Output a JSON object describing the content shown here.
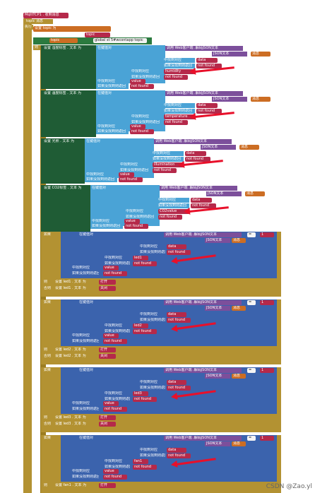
{
  "header": {
    "event_label": "MqttTCP1 . 收到消息",
    "topic_param": "topic",
    "message_param": "消息",
    "do_label": "执行",
    "set_label": "设置",
    "to_label": "为",
    "topic_var": "topic",
    "topic_block": "topic",
    "global_topic": "global st 5#wcontapp topic"
  },
  "common": {
    "if_label": "如果",
    "then_label": "则",
    "else_label": "否则",
    "get_label": "取",
    "parse_json": "调用 Web客户端 .解码JSON文本",
    "json_text": "JSON文本",
    "message_var": "消息",
    "key_label": "键",
    "tag_label": "中找到对应",
    "notfound_label": "如果没找到则返回",
    "cond_label": "在键值对",
    "notfound": "not found",
    "data": "data",
    "value": "value",
    "eq": "=",
    "quote1": "1",
    "source_label": "键值对组件",
    "comp_label": "组件 ▾",
    "text_label": "文本 ▾"
  },
  "sections": [
    {
      "label": "设置 湿度标签 . 文本 为",
      "key": "humidity",
      "accent": "#1f5c35"
    },
    {
      "label": "设置 温度标签 . 文本 为",
      "key": "temperature",
      "accent": "#1f5c35"
    },
    {
      "label": "设置 光照 . 文本 为",
      "key": "illumination",
      "accent": "#1f5c35"
    },
    {
      "label": "设置 CO2标签 . 文本 为",
      "key": "CO2value",
      "accent": "#1f5c35"
    }
  ],
  "if_blocks": [
    {
      "key": "led1",
      "then_label": "设置 led1 . 文本 为",
      "then_val": "打开",
      "else_label": "设置 led1 . 文本 为",
      "else_val": "关闭"
    },
    {
      "key": "led2",
      "then_label": "设置 led2 . 文本 为",
      "then_val": "打开",
      "else_label": "设置 led2 . 文本 为",
      "else_val": "关闭"
    },
    {
      "key": "led3",
      "then_label": "设置 led3 . 文本 为",
      "then_val": "打开",
      "else_label": "设置 led3 . 文本 为",
      "else_val": "关闭"
    },
    {
      "key": "fan1",
      "then_label": "设置 fan1 . 文本 为",
      "then_val": "打开",
      "else_label": "",
      "else_val": ""
    }
  ],
  "watermark": "CSDN @Zao.yl"
}
